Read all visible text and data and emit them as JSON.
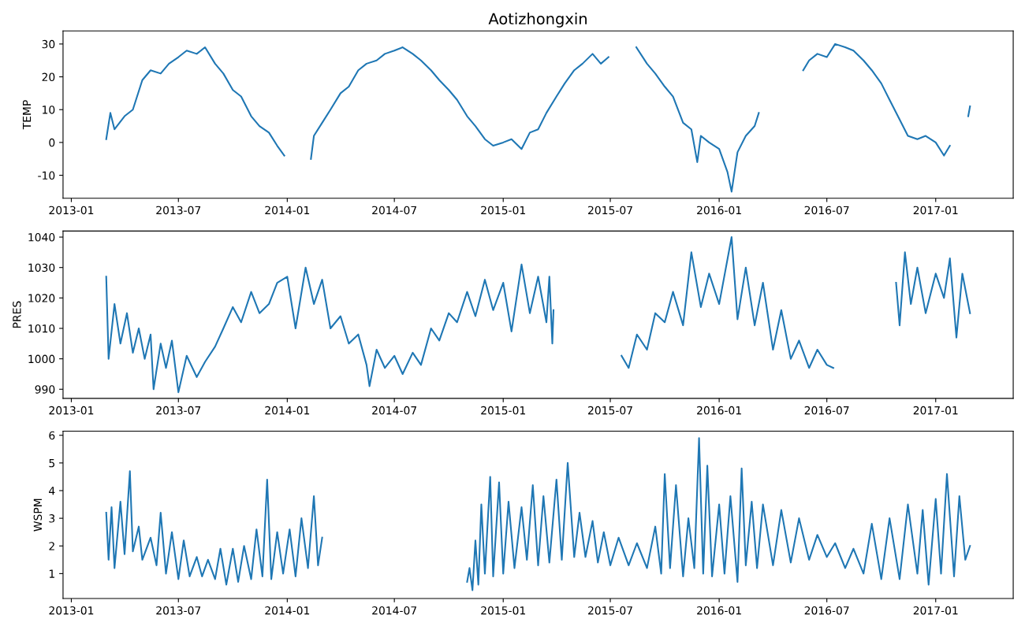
{
  "chart_data": [
    {
      "type": "line",
      "title": "Aotizhongxin",
      "ylabel": "TEMP",
      "xlim": [
        "2012-12-18",
        "2017-05-12"
      ],
      "xticks": [
        "2013-01",
        "2013-07",
        "2014-01",
        "2014-07",
        "2015-01",
        "2015-07",
        "2016-01",
        "2016-07",
        "2017-01"
      ],
      "ylim": [
        -17,
        34
      ],
      "yticks": [
        -10,
        0,
        10,
        20,
        30
      ],
      "grid": false,
      "series": [
        {
          "color": "#1f77b4",
          "x": [
            "2013-03-01",
            "2013-03-08",
            "2013-03-15",
            "2013-04-01",
            "2013-04-15",
            "2013-05-01",
            "2013-05-15",
            "2013-06-01",
            "2013-06-15",
            "2013-07-01",
            "2013-07-15",
            "2013-08-01",
            "2013-08-15",
            "2013-09-01",
            "2013-09-15",
            "2013-10-01",
            "2013-10-15",
            "2013-11-01",
            "2013-11-15",
            "2013-12-01",
            "2013-12-15",
            "2013-12-27",
            "2014-01-15",
            "2014-02-10",
            "2014-02-15",
            "2014-03-01",
            "2014-03-15",
            "2014-04-01",
            "2014-04-15",
            "2014-05-01",
            "2014-05-15",
            "2014-06-01",
            "2014-06-15",
            "2014-07-01",
            "2014-07-15",
            "2014-08-01",
            "2014-08-15",
            "2014-09-01",
            "2014-09-15",
            "2014-10-01",
            "2014-10-15",
            "2014-11-01",
            "2014-11-15",
            "2014-12-01",
            "2014-12-15",
            "2015-01-01",
            "2015-01-15",
            "2015-02-01",
            "2015-02-15",
            "2015-03-01",
            "2015-03-15",
            "2015-04-01",
            "2015-04-15",
            "2015-05-01",
            "2015-05-15",
            "2015-06-01",
            "2015-06-15",
            "2015-06-28",
            "2015-07-20",
            "2015-08-14",
            "2015-09-01",
            "2015-09-15",
            "2015-10-01",
            "2015-10-15",
            "2015-11-01",
            "2015-11-15",
            "2015-11-25",
            "2015-12-01",
            "2015-12-15",
            "2016-01-01",
            "2016-01-15",
            "2016-01-22",
            "2016-02-01",
            "2016-02-15",
            "2016-03-01",
            "2016-03-08",
            "2016-04-15",
            "2016-05-22",
            "2016-06-01",
            "2016-06-15",
            "2016-07-01",
            "2016-07-15",
            "2016-08-01",
            "2016-08-15",
            "2016-09-01",
            "2016-09-15",
            "2016-10-01",
            "2016-10-15",
            "2016-11-01",
            "2016-11-15",
            "2016-12-01",
            "2016-12-15",
            "2017-01-01",
            "2017-01-15",
            "2017-01-25",
            "2017-02-10",
            "2017-02-25",
            "2017-02-28"
          ],
          "values": [
            1,
            9,
            4,
            8,
            10,
            19,
            22,
            21,
            24,
            26,
            28,
            27,
            29,
            24,
            21,
            16,
            14,
            8,
            5,
            3,
            -1,
            -4,
            null,
            -5,
            2,
            6,
            10,
            15,
            17,
            22,
            24,
            25,
            27,
            28,
            29,
            27,
            25,
            22,
            19,
            16,
            13,
            8,
            5,
            1,
            -1,
            0,
            1,
            -2,
            3,
            4,
            9,
            14,
            18,
            22,
            24,
            27,
            24,
            26,
            null,
            29,
            24,
            21,
            17,
            14,
            6,
            4,
            -6,
            2,
            0,
            -2,
            -9,
            -15,
            -3,
            2,
            5,
            9,
            null,
            22,
            25,
            27,
            26,
            30,
            29,
            28,
            25,
            22,
            18,
            13,
            7,
            2,
            1,
            2,
            0,
            -4,
            -1,
            null,
            8,
            11
          ]
        }
      ]
    },
    {
      "type": "line",
      "ylabel": "PRES",
      "xlim": [
        "2012-12-18",
        "2017-05-12"
      ],
      "xticks": [
        "2013-01",
        "2013-07",
        "2014-01",
        "2014-07",
        "2015-01",
        "2015-07",
        "2016-01",
        "2016-07",
        "2017-01"
      ],
      "ylim": [
        987,
        1042
      ],
      "yticks": [
        990,
        1000,
        1010,
        1020,
        1030,
        1040
      ],
      "grid": false,
      "series": [
        {
          "color": "#1f77b4",
          "x": [
            "2013-03-01",
            "2013-03-05",
            "2013-03-15",
            "2013-03-25",
            "2013-04-05",
            "2013-04-15",
            "2013-04-25",
            "2013-05-05",
            "2013-05-15",
            "2013-05-20",
            "2013-06-01",
            "2013-06-10",
            "2013-06-20",
            "2013-07-01",
            "2013-07-15",
            "2013-08-01",
            "2013-08-15",
            "2013-09-01",
            "2013-09-15",
            "2013-10-01",
            "2013-10-15",
            "2013-11-01",
            "2013-11-15",
            "2013-12-01",
            "2013-12-15",
            "2014-01-01",
            "2014-01-15",
            "2014-02-01",
            "2014-02-15",
            "2014-03-01",
            "2014-03-15",
            "2014-04-01",
            "2014-04-15",
            "2014-05-01",
            "2014-05-15",
            "2014-05-20",
            "2014-06-01",
            "2014-06-15",
            "2014-07-01",
            "2014-07-15",
            "2014-08-01",
            "2014-08-15",
            "2014-09-01",
            "2014-09-15",
            "2014-10-01",
            "2014-10-15",
            "2014-11-01",
            "2014-11-15",
            "2014-12-01",
            "2014-12-15",
            "2015-01-01",
            "2015-01-15",
            "2015-02-01",
            "2015-02-15",
            "2015-03-01",
            "2015-03-15",
            "2015-03-20",
            "2015-03-25",
            "2015-03-27",
            "2015-05-15",
            "2015-07-20",
            "2015-08-01",
            "2015-08-15",
            "2015-09-01",
            "2015-09-15",
            "2015-10-01",
            "2015-10-15",
            "2015-11-01",
            "2015-11-15",
            "2015-12-01",
            "2015-12-15",
            "2016-01-01",
            "2016-01-22",
            "2016-02-01",
            "2016-02-15",
            "2016-03-01",
            "2016-03-15",
            "2016-04-01",
            "2016-04-15",
            "2016-05-01",
            "2016-05-15",
            "2016-06-01",
            "2016-06-15",
            "2016-07-01",
            "2016-07-12",
            "2016-09-01",
            "2016-10-26",
            "2016-11-01",
            "2016-11-10",
            "2016-11-20",
            "2016-12-01",
            "2016-12-15",
            "2017-01-01",
            "2017-01-15",
            "2017-01-25",
            "2017-02-05",
            "2017-02-15",
            "2017-02-28"
          ],
          "values": [
            1027,
            1000,
            1018,
            1005,
            1015,
            1002,
            1010,
            1000,
            1008,
            990,
            1005,
            997,
            1006,
            989,
            1001,
            994,
            999,
            1004,
            1010,
            1017,
            1012,
            1022,
            1015,
            1018,
            1025,
            1027,
            1010,
            1030,
            1018,
            1026,
            1010,
            1014,
            1005,
            1008,
            998,
            991,
            1003,
            997,
            1001,
            995,
            1002,
            998,
            1010,
            1006,
            1015,
            1012,
            1022,
            1014,
            1026,
            1016,
            1025,
            1009,
            1031,
            1015,
            1027,
            1012,
            1027,
            1005,
            1016,
            null,
            1001,
            997,
            1008,
            1003,
            1015,
            1012,
            1022,
            1011,
            1035,
            1017,
            1028,
            1018,
            1040,
            1013,
            1030,
            1011,
            1025,
            1003,
            1016,
            1000,
            1006,
            997,
            1003,
            998,
            997,
            null,
            1025,
            1011,
            1035,
            1018,
            1030,
            1015,
            1028,
            1020,
            1033,
            1007,
            1028,
            1015
          ]
        }
      ]
    },
    {
      "type": "line",
      "ylabel": "WSPM",
      "xlim": [
        "2012-12-18",
        "2017-05-12"
      ],
      "xticks": [
        "2013-01",
        "2013-07",
        "2014-01",
        "2014-07",
        "2015-01",
        "2015-07",
        "2016-01",
        "2016-07",
        "2017-01"
      ],
      "ylim": [
        0.1,
        6.15
      ],
      "yticks": [
        1,
        2,
        3,
        4,
        5,
        6
      ],
      "grid": false,
      "series": [
        {
          "color": "#1f77b4",
          "x": [
            "2013-03-01",
            "2013-03-05",
            "2013-03-10",
            "2013-03-15",
            "2013-03-25",
            "2013-04-01",
            "2013-04-10",
            "2013-04-15",
            "2013-04-25",
            "2013-05-01",
            "2013-05-15",
            "2013-05-25",
            "2013-06-01",
            "2013-06-10",
            "2013-06-20",
            "2013-07-01",
            "2013-07-10",
            "2013-07-20",
            "2013-08-01",
            "2013-08-10",
            "2013-08-20",
            "2013-09-01",
            "2013-09-10",
            "2013-09-20",
            "2013-10-01",
            "2013-10-10",
            "2013-10-20",
            "2013-11-01",
            "2013-11-10",
            "2013-11-20",
            "2013-11-28",
            "2013-12-05",
            "2013-12-15",
            "2013-12-25",
            "2014-01-05",
            "2014-01-15",
            "2014-01-25",
            "2014-02-05",
            "2014-02-15",
            "2014-02-22",
            "2014-03-01",
            "2014-07-01",
            "2014-11-01",
            "2014-11-05",
            "2014-11-10",
            "2014-11-15",
            "2014-11-20",
            "2014-11-25",
            "2014-12-01",
            "2014-12-10",
            "2014-12-15",
            "2014-12-25",
            "2015-01-01",
            "2015-01-10",
            "2015-01-20",
            "2015-02-01",
            "2015-02-10",
            "2015-02-20",
            "2015-03-01",
            "2015-03-10",
            "2015-03-20",
            "2015-04-01",
            "2015-04-10",
            "2015-04-20",
            "2015-05-01",
            "2015-05-10",
            "2015-05-20",
            "2015-06-01",
            "2015-06-10",
            "2015-06-20",
            "2015-07-01",
            "2015-07-15",
            "2015-08-01",
            "2015-08-15",
            "2015-09-01",
            "2015-09-15",
            "2015-09-25",
            "2015-10-01",
            "2015-10-10",
            "2015-10-20",
            "2015-11-01",
            "2015-11-10",
            "2015-11-20",
            "2015-11-28",
            "2015-12-05",
            "2015-12-12",
            "2015-12-20",
            "2016-01-01",
            "2016-01-10",
            "2016-01-20",
            "2016-02-01",
            "2016-02-08",
            "2016-02-15",
            "2016-02-25",
            "2016-03-05",
            "2016-03-15",
            "2016-04-01",
            "2016-04-15",
            "2016-05-01",
            "2016-05-15",
            "2016-06-01",
            "2016-06-15",
            "2016-07-01",
            "2016-07-15",
            "2016-08-01",
            "2016-08-15",
            "2016-09-01",
            "2016-09-15",
            "2016-10-01",
            "2016-10-15",
            "2016-11-01",
            "2016-11-15",
            "2016-12-01",
            "2016-12-10",
            "2016-12-20",
            "2017-01-01",
            "2017-01-10",
            "2017-01-20",
            "2017-02-01",
            "2017-02-10",
            "2017-02-20",
            "2017-02-28"
          ],
          "values": [
            3.2,
            1.5,
            3.4,
            1.2,
            3.6,
            1.7,
            4.7,
            1.8,
            2.7,
            1.5,
            2.3,
            1.3,
            3.2,
            1.0,
            2.5,
            0.8,
            2.2,
            0.9,
            1.6,
            0.9,
            1.5,
            0.8,
            1.9,
            0.6,
            1.9,
            0.7,
            2.0,
            0.8,
            2.6,
            0.9,
            4.4,
            0.8,
            2.5,
            1.0,
            2.6,
            0.9,
            3.0,
            1.2,
            3.8,
            1.3,
            2.3,
            null,
            0.7,
            1.2,
            0.4,
            2.2,
            0.6,
            3.5,
            1.0,
            4.5,
            0.9,
            4.3,
            1.0,
            3.6,
            1.2,
            3.4,
            1.5,
            4.2,
            1.3,
            3.8,
            1.4,
            4.4,
            1.5,
            5.0,
            1.6,
            3.2,
            1.6,
            2.9,
            1.4,
            2.5,
            1.3,
            2.3,
            1.3,
            2.1,
            1.2,
            2.7,
            1.0,
            4.6,
            1.2,
            4.2,
            0.9,
            3.0,
            1.2,
            5.9,
            1.0,
            4.9,
            0.9,
            3.5,
            1.0,
            3.8,
            0.7,
            4.8,
            1.3,
            3.6,
            1.2,
            3.5,
            1.3,
            3.3,
            1.4,
            3.0,
            1.5,
            2.4,
            1.6,
            2.1,
            1.2,
            1.9,
            1.0,
            2.8,
            0.8,
            3.0,
            0.8,
            3.5,
            1.0,
            3.3,
            0.6,
            3.7,
            1.0,
            4.6,
            0.9,
            3.8,
            1.5,
            2.0
          ]
        }
      ]
    }
  ]
}
